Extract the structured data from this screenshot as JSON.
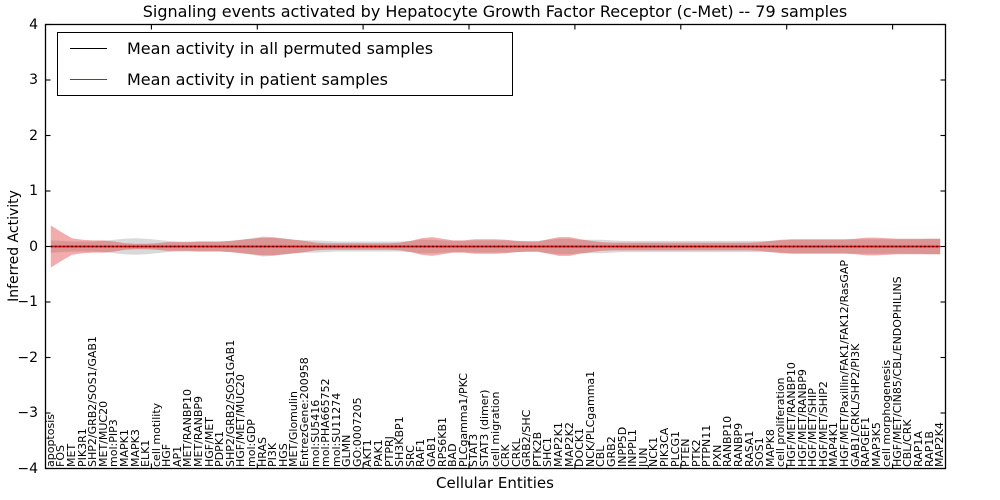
{
  "chart_data": {
    "type": "area",
    "title": "Signaling events activated by Hepatocyte Growth Factor Receptor (c-Met) -- 79 samples",
    "xlabel": "Cellular Entities",
    "ylabel": "Inferred Activity",
    "ylim": [
      -4,
      4
    ],
    "yticks": [
      4,
      3,
      2,
      1,
      0,
      -1,
      -2,
      -3,
      -4
    ],
    "ytick_labels": [
      "4",
      "3",
      "2",
      "1",
      "0",
      "−1",
      "−2",
      "−3",
      "−4"
    ],
    "x_major_ticks": [
      10,
      20,
      30,
      40,
      50,
      60,
      70,
      80
    ],
    "grid": false,
    "legend_position": "upper left",
    "categories": [
      "apoptosis",
      "FOS",
      "MET",
      "PIK3R1",
      "SHP2/GRB2/SOS1/GAB1",
      "MET/MUC20",
      "mol:PIP3",
      "MAPK1",
      "MAPK3",
      "ELK1",
      "cell motility",
      "HGF",
      "AP1",
      "MET/RANBP10",
      "MET/RANBP9",
      "HGF/MET",
      "PDPK1",
      "SHP2/GRB2/SOS1GAB1",
      "HGF/MET/MUC20",
      "mol:GDP",
      "HRAS",
      "PI3K",
      "HGS",
      "MET/Glomulin",
      "EntrezGene:200958",
      "mol:SU5416",
      "mol:PHA665752",
      "mol:SU11274",
      "GLMN",
      "GO:0007205",
      "AKT1",
      "PAK1",
      "PTPRJ",
      "SH3KBP1",
      "SRC",
      "RAF1",
      "GAB1",
      "RPS6KB1",
      "BAD",
      "PLCgamma1/PKC",
      "STAT3",
      "STAT3 (dimer)",
      "cell migration",
      "CRK",
      "CRKL",
      "GRB2/SHC",
      "PTK2B",
      "SHC1",
      "MAP2K1",
      "MAP2K2",
      "DOCK1",
      "NCK/PLCgamma1",
      "CBL",
      "GRB2",
      "INPP5D",
      "INPPL1",
      "JUN",
      "NCK1",
      "PIK3CA",
      "PLCG1",
      "PTEN",
      "PTK2",
      "PTPN11",
      "PXN",
      "RANBP10",
      "RANBP9",
      "RASA1",
      "SOS1",
      "MAPK8",
      "cell proliferation",
      "HGF/MET/RANBP10",
      "HGF/MET/RANBP9",
      "HGF/MET/SHIP",
      "HGF/MET/SHIP2",
      "MAP4K1",
      "HGF/MET/Paxillin/FAK1/FAK12/RasGAP",
      "GAB1/CRKL/SHP2/PI3K",
      "RAPGEF1",
      "MAP3K5",
      "cell morphogenesis",
      "HGF/MET/CIN85/CBL/ENDOPHILINS",
      "CBL/CRK",
      "RAP1A",
      "RAP1B",
      "MAP2K4"
    ],
    "series": [
      {
        "name": "Mean activity in all permuted samples",
        "color": "#000000",
        "line_style": "dotted",
        "approx_value": 0.0
      },
      {
        "name": "Mean activity in patient samples",
        "color": "#ff0000",
        "line_style": "solid",
        "approx_value": 0.0
      }
    ],
    "bands": [
      {
        "name": "permuted samples activity range",
        "color": "#808080",
        "opacity": 0.3,
        "halfwidths": [
          0.11,
          0.1,
          0.09,
          0.09,
          0.09,
          0.1,
          0.12,
          0.14,
          0.15,
          0.14,
          0.12,
          0.1,
          0.09,
          0.09,
          0.09,
          0.09,
          0.09,
          0.1,
          0.12,
          0.15,
          0.18,
          0.17,
          0.15,
          0.12,
          0.11,
          0.11,
          0.1,
          0.09,
          0.09,
          0.09,
          0.09,
          0.09,
          0.09,
          0.09,
          0.1,
          0.12,
          0.12,
          0.11,
          0.1,
          0.1,
          0.11,
          0.11,
          0.11,
          0.11,
          0.1,
          0.1,
          0.1,
          0.12,
          0.14,
          0.14,
          0.12,
          0.12,
          0.12,
          0.11,
          0.1,
          0.1,
          0.1,
          0.1,
          0.1,
          0.1,
          0.1,
          0.1,
          0.1,
          0.1,
          0.1,
          0.1,
          0.1,
          0.1,
          0.1,
          0.11,
          0.12,
          0.12,
          0.12,
          0.12,
          0.12,
          0.12,
          0.13,
          0.13,
          0.13,
          0.13,
          0.13,
          0.13,
          0.13,
          0.14,
          0.14
        ]
      },
      {
        "name": "patient samples activity range",
        "color": "#e03030",
        "opacity": 0.4,
        "halfwidths": [
          0.38,
          0.26,
          0.15,
          0.12,
          0.11,
          0.11,
          0.09,
          0.06,
          0.05,
          0.05,
          0.06,
          0.08,
          0.08,
          0.08,
          0.09,
          0.09,
          0.09,
          0.1,
          0.12,
          0.14,
          0.16,
          0.16,
          0.14,
          0.12,
          0.1,
          0.07,
          0.06,
          0.06,
          0.06,
          0.06,
          0.06,
          0.06,
          0.06,
          0.07,
          0.1,
          0.15,
          0.17,
          0.14,
          0.11,
          0.11,
          0.13,
          0.13,
          0.13,
          0.12,
          0.1,
          0.09,
          0.09,
          0.13,
          0.17,
          0.17,
          0.13,
          0.1,
          0.08,
          0.07,
          0.07,
          0.07,
          0.07,
          0.07,
          0.07,
          0.07,
          0.07,
          0.07,
          0.07,
          0.07,
          0.07,
          0.07,
          0.07,
          0.08,
          0.1,
          0.12,
          0.13,
          0.13,
          0.13,
          0.13,
          0.13,
          0.13,
          0.14,
          0.16,
          0.16,
          0.15,
          0.14,
          0.14,
          0.14,
          0.14,
          0.14
        ]
      }
    ]
  }
}
